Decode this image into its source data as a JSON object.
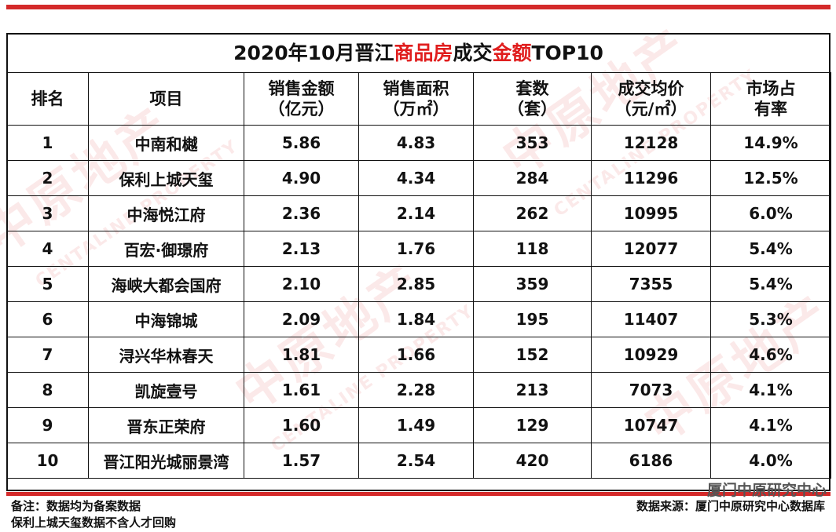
{
  "title": {
    "prefix": "2020年10月晋江",
    "red1": "商品房",
    "mid": "成交",
    "red2": "金额",
    "suffix": "TOP10"
  },
  "headers": {
    "rank": "排名",
    "project": "项目",
    "amount_l1": "销售金额",
    "amount_l2": "（亿元）",
    "area_l1": "销售面积",
    "area_l2": "（万㎡）",
    "units_l1": "套数",
    "units_l2": "（套）",
    "price_l1": "成交均价",
    "price_l2": "（元/㎡）",
    "share_l1": "市场占",
    "share_l2": "有率"
  },
  "rows": [
    {
      "rank": "1",
      "project": "中南和樾",
      "amount": "5.86",
      "area": "4.83",
      "units": "353",
      "price": "12128",
      "share": "14.9%"
    },
    {
      "rank": "2",
      "project": "保利上城天玺",
      "amount": "4.90",
      "area": "4.34",
      "units": "284",
      "price": "11296",
      "share": "12.5%"
    },
    {
      "rank": "3",
      "project": "中海悦江府",
      "amount": "2.36",
      "area": "2.14",
      "units": "262",
      "price": "10995",
      "share": "6.0%"
    },
    {
      "rank": "4",
      "project": "百宏·御璟府",
      "amount": "2.13",
      "area": "1.76",
      "units": "118",
      "price": "12077",
      "share": "5.4%"
    },
    {
      "rank": "5",
      "project": "海峡大都会国府",
      "amount": "2.10",
      "area": "2.85",
      "units": "359",
      "price": "7355",
      "share": "5.4%"
    },
    {
      "rank": "6",
      "project": "中海锦城",
      "amount": "2.09",
      "area": "1.84",
      "units": "195",
      "price": "11407",
      "share": "5.3%"
    },
    {
      "rank": "7",
      "project": "浔兴华林春天",
      "amount": "1.81",
      "area": "1.66",
      "units": "152",
      "price": "10929",
      "share": "4.6%"
    },
    {
      "rank": "8",
      "project": "凯旋壹号",
      "amount": "1.61",
      "area": "2.28",
      "units": "213",
      "price": "7073",
      "share": "4.1%"
    },
    {
      "rank": "9",
      "project": "晋东正荣府",
      "amount": "1.60",
      "area": "1.49",
      "units": "129",
      "price": "10747",
      "share": "4.1%"
    },
    {
      "rank": "10",
      "project": "晋江阳光城丽景湾",
      "amount": "1.57",
      "area": "2.54",
      "units": "420",
      "price": "6186",
      "share": "4.0%"
    }
  ],
  "footer": {
    "note1": "备注：数据均为备案数据",
    "note2": "保利上城天玺数据不含人才回购",
    "source": "数据来源：厦门中原研究中心数据库",
    "brand": "厦门中原研究中心"
  },
  "watermark": {
    "cn": "中原地产",
    "en": "CENTALINE PROPERTY"
  },
  "colors": {
    "accent_red": "#d42a2a",
    "title_red": "#e01e1e"
  }
}
